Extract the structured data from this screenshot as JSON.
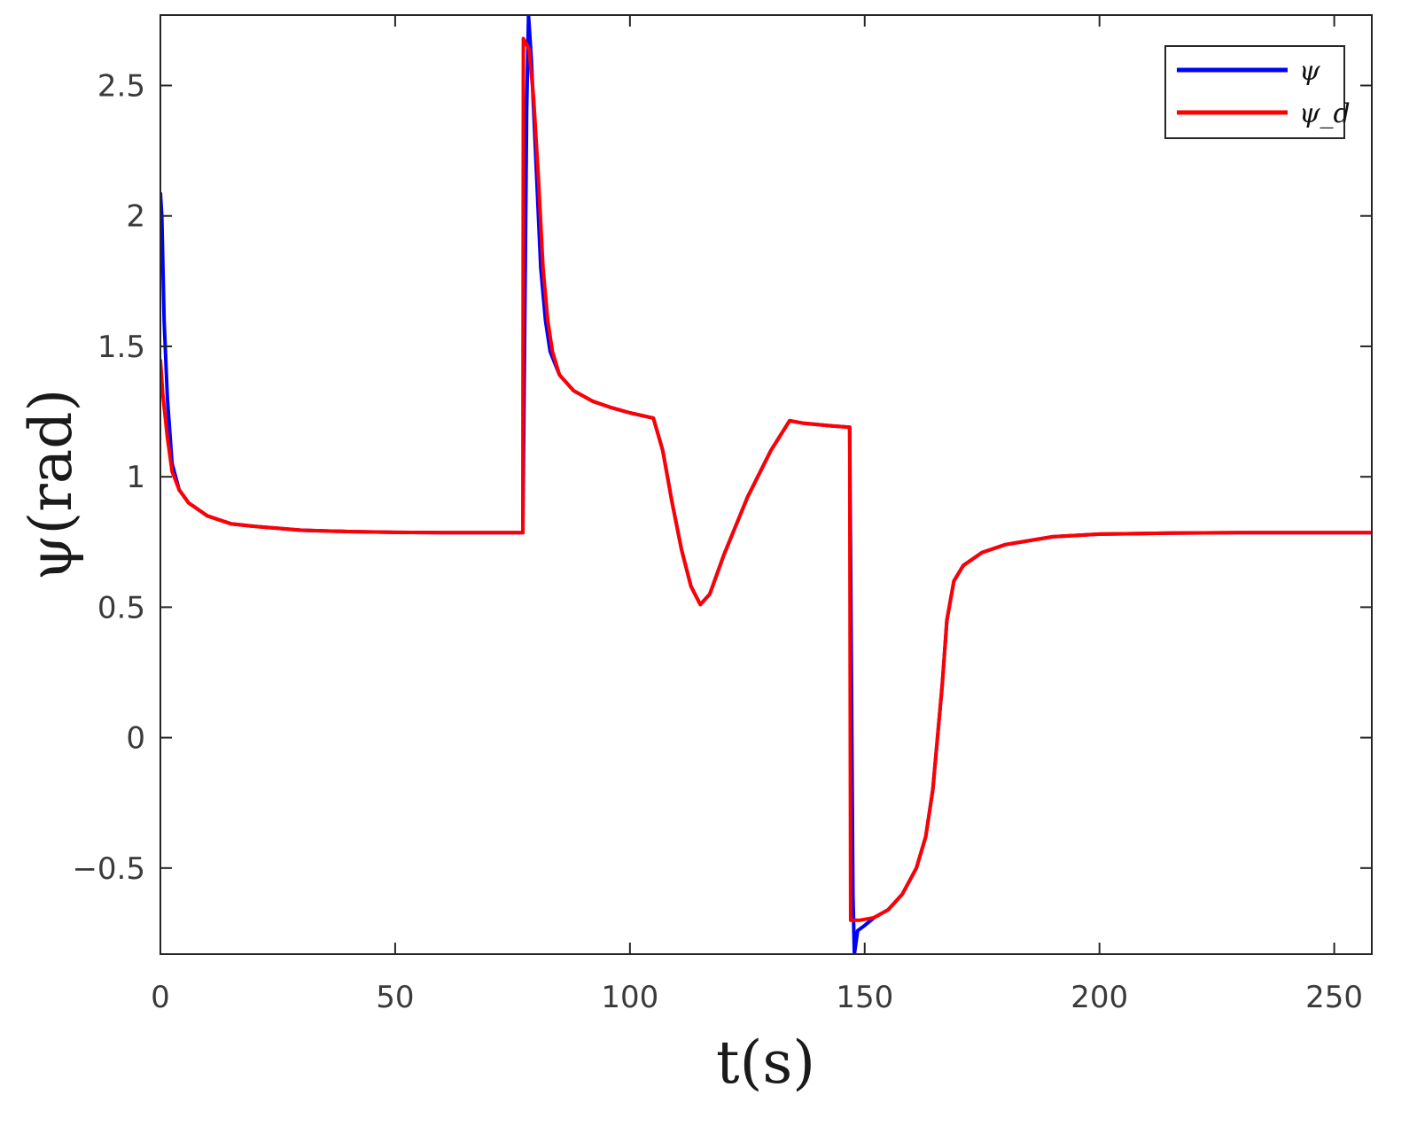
{
  "chart_data": {
    "type": "line",
    "title": "",
    "xlabel": "t(s)",
    "ylabel": "ψ(rad)",
    "xlim": [
      0,
      258
    ],
    "ylim": [
      -0.83,
      2.77
    ],
    "xticks": [
      0,
      50,
      100,
      150,
      200,
      250
    ],
    "yticks": [
      -0.5,
      0,
      0.5,
      1,
      1.5,
      2,
      2.5
    ],
    "xtick_labels": [
      "0",
      "50",
      "100",
      "150",
      "200",
      "250"
    ],
    "ytick_labels": [
      "−0.5",
      "0",
      "0.5",
      "1",
      "1.5",
      "2",
      "2.5"
    ],
    "grid": false,
    "legend_position": "top-right",
    "series": [
      {
        "name": "ψ",
        "color": "#0000ff",
        "points": [
          [
            0,
            2.09
          ],
          [
            0.3,
            2.0
          ],
          [
            0.8,
            1.6
          ],
          [
            1.5,
            1.3
          ],
          [
            2.5,
            1.05
          ],
          [
            4,
            0.95
          ],
          [
            6,
            0.9
          ],
          [
            10,
            0.85
          ],
          [
            15,
            0.82
          ],
          [
            20,
            0.81
          ],
          [
            30,
            0.795
          ],
          [
            40,
            0.79
          ],
          [
            50,
            0.787
          ],
          [
            60,
            0.786
          ],
          [
            70,
            0.786
          ],
          [
            77.2,
            0.786
          ],
          [
            77.6,
            1.6
          ],
          [
            78,
            2.4
          ],
          [
            78.4,
            2.77
          ],
          [
            79,
            2.6
          ],
          [
            80,
            2.2
          ],
          [
            81,
            1.8
          ],
          [
            82,
            1.6
          ],
          [
            83,
            1.48
          ],
          [
            85,
            1.39
          ],
          [
            88,
            1.33
          ],
          [
            92,
            1.29
          ],
          [
            96,
            1.265
          ],
          [
            100,
            1.245
          ],
          [
            105,
            1.225
          ],
          [
            107,
            1.1
          ],
          [
            109,
            0.9
          ],
          [
            111,
            0.72
          ],
          [
            113,
            0.58
          ],
          [
            115,
            0.51
          ],
          [
            117,
            0.55
          ],
          [
            120,
            0.7
          ],
          [
            125,
            0.92
          ],
          [
            130,
            1.1
          ],
          [
            134,
            1.215
          ],
          [
            137,
            1.205
          ],
          [
            140,
            1.2
          ],
          [
            143,
            1.195
          ],
          [
            146.8,
            1.19
          ],
          [
            147.2,
            0.2
          ],
          [
            147.5,
            -0.6
          ],
          [
            147.8,
            -0.83
          ],
          [
            148.5,
            -0.74
          ],
          [
            150,
            -0.72
          ],
          [
            152,
            -0.69
          ],
          [
            155,
            -0.66
          ],
          [
            158,
            -0.6
          ],
          [
            161,
            -0.5
          ],
          [
            163,
            -0.38
          ],
          [
            164.5,
            -0.2
          ],
          [
            165.5,
            0.0
          ],
          [
            166.5,
            0.2
          ],
          [
            167.5,
            0.45
          ],
          [
            169,
            0.6
          ],
          [
            171,
            0.66
          ],
          [
            175,
            0.71
          ],
          [
            180,
            0.74
          ],
          [
            190,
            0.77
          ],
          [
            200,
            0.78
          ],
          [
            215,
            0.784
          ],
          [
            230,
            0.786
          ],
          [
            258,
            0.786
          ]
        ]
      },
      {
        "name": "ψ_d",
        "color": "#ff0000",
        "points": [
          [
            0,
            1.45
          ],
          [
            0.5,
            1.32
          ],
          [
            1.5,
            1.15
          ],
          [
            2.5,
            1.02
          ],
          [
            4,
            0.95
          ],
          [
            6,
            0.9
          ],
          [
            10,
            0.85
          ],
          [
            15,
            0.82
          ],
          [
            20,
            0.81
          ],
          [
            30,
            0.795
          ],
          [
            40,
            0.79
          ],
          [
            50,
            0.787
          ],
          [
            60,
            0.786
          ],
          [
            70,
            0.786
          ],
          [
            77.2,
            0.786
          ],
          [
            77.3,
            2.68
          ],
          [
            78.5,
            2.64
          ],
          [
            79.5,
            2.45
          ],
          [
            80.5,
            2.15
          ],
          [
            81.5,
            1.8
          ],
          [
            82.5,
            1.6
          ],
          [
            83.5,
            1.48
          ],
          [
            85,
            1.39
          ],
          [
            88,
            1.33
          ],
          [
            92,
            1.29
          ],
          [
            96,
            1.265
          ],
          [
            100,
            1.245
          ],
          [
            105,
            1.225
          ],
          [
            107,
            1.1
          ],
          [
            109,
            0.9
          ],
          [
            111,
            0.72
          ],
          [
            113,
            0.58
          ],
          [
            115,
            0.51
          ],
          [
            117,
            0.55
          ],
          [
            120,
            0.7
          ],
          [
            125,
            0.92
          ],
          [
            130,
            1.1
          ],
          [
            134,
            1.215
          ],
          [
            137,
            1.205
          ],
          [
            140,
            1.2
          ],
          [
            143,
            1.195
          ],
          [
            146.8,
            1.19
          ],
          [
            147,
            -0.7
          ],
          [
            149,
            -0.7
          ],
          [
            152,
            -0.69
          ],
          [
            155,
            -0.66
          ],
          [
            158,
            -0.6
          ],
          [
            161,
            -0.5
          ],
          [
            163,
            -0.38
          ],
          [
            164.5,
            -0.2
          ],
          [
            165.5,
            0.0
          ],
          [
            166.5,
            0.2
          ],
          [
            167.5,
            0.45
          ],
          [
            169,
            0.6
          ],
          [
            171,
            0.66
          ],
          [
            175,
            0.71
          ],
          [
            180,
            0.74
          ],
          [
            190,
            0.77
          ],
          [
            200,
            0.78
          ],
          [
            215,
            0.784
          ],
          [
            230,
            0.786
          ],
          [
            258,
            0.786
          ]
        ]
      }
    ]
  }
}
